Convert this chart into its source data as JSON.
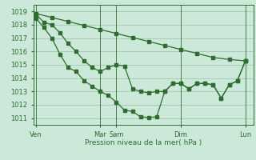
{
  "background_color": "#cce8d8",
  "grid_color": "#aacbb8",
  "line_color": "#2d6e2d",
  "ylabel_text": "Pression niveau de la mer( hPa )",
  "ylim": [
    1010.5,
    1019.5
  ],
  "yticks": [
    1011,
    1012,
    1013,
    1014,
    1015,
    1016,
    1017,
    1018,
    1019
  ],
  "xtick_labels": [
    "Ven",
    "Mar",
    "Sam",
    "Dim",
    "Lun"
  ],
  "xtick_positions": [
    0,
    8,
    10,
    18,
    26
  ],
  "xlim": [
    -0.3,
    27
  ],
  "line1_x": [
    0,
    2,
    4,
    6,
    8,
    10,
    12,
    14,
    16,
    18,
    20,
    22,
    24,
    26
  ],
  "line1_y": [
    1018.85,
    1018.55,
    1018.25,
    1017.95,
    1017.65,
    1017.35,
    1017.05,
    1016.75,
    1016.45,
    1016.15,
    1015.85,
    1015.55,
    1015.4,
    1015.3
  ],
  "line2_x": [
    0,
    1,
    2,
    3,
    4,
    5,
    6,
    7,
    8,
    9,
    10,
    11,
    12,
    13,
    14,
    15,
    16,
    17,
    18,
    19,
    20,
    21,
    22,
    23,
    24,
    25,
    26
  ],
  "line2_y": [
    1018.5,
    1017.8,
    1017.0,
    1015.8,
    1014.8,
    1014.5,
    1013.8,
    1013.4,
    1013.0,
    1012.7,
    1012.2,
    1011.6,
    1011.5,
    1011.1,
    1011.05,
    1011.1,
    1013.0,
    1013.6,
    1013.6,
    1013.2,
    1013.6,
    1013.6,
    1013.5,
    1012.5,
    1013.5,
    1013.8,
    1015.3
  ],
  "line3_x": [
    0,
    1,
    2,
    3,
    4,
    5,
    6,
    7,
    8,
    9,
    10,
    11,
    12,
    13,
    14,
    15,
    16,
    17,
    18,
    19,
    20,
    21,
    22,
    23,
    24,
    25,
    26
  ],
  "line3_y": [
    1018.8,
    1018.2,
    1018.0,
    1017.4,
    1016.6,
    1016.0,
    1015.3,
    1014.8,
    1014.5,
    1014.8,
    1015.0,
    1014.9,
    1013.2,
    1013.0,
    1012.9,
    1013.0,
    1013.0,
    1013.6,
    1013.6,
    1013.2,
    1013.6,
    1013.6,
    1013.5,
    1012.5,
    1013.5,
    1013.8,
    1015.3
  ]
}
